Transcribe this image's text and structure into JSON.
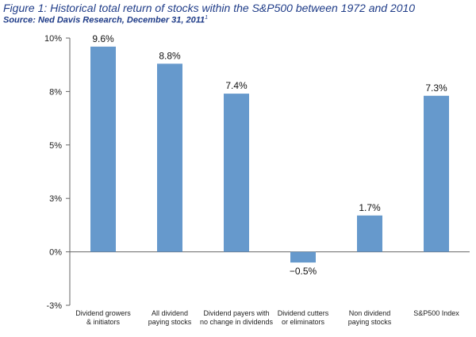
{
  "figure": {
    "title": "Figure 1: Historical total return of stocks within the S&P500 between 1972 and 2010",
    "source": "Source: Ned Davis Research, December 31, 2011",
    "source_footnote": "1"
  },
  "chart_data": {
    "type": "bar",
    "categories": [
      [
        "Dividend growers",
        "& initiators"
      ],
      [
        "All dividend",
        "paying stocks"
      ],
      [
        "Dividend payers with",
        "no change in dividends"
      ],
      [
        "Dividend cutters",
        "or eliminators"
      ],
      [
        "Non dividend",
        "paying stocks"
      ],
      [
        "S&P500 Index"
      ]
    ],
    "values": [
      9.6,
      8.8,
      7.4,
      -0.5,
      1.7,
      7.3
    ],
    "data_labels": [
      "9.6%",
      "8.8%",
      "7.4%",
      "−0.5%",
      "1.7%",
      "7.3%"
    ],
    "y_ticks": [
      {
        "value": 10,
        "label": "10%"
      },
      {
        "value": 7.5,
        "label": "8%"
      },
      {
        "value": 5,
        "label": "5%"
      },
      {
        "value": 2.5,
        "label": "3%"
      },
      {
        "value": 0,
        "label": "0%"
      },
      {
        "value": -2.5,
        "label": "-3%"
      }
    ],
    "ylim": [
      -2.5,
      10
    ],
    "grid": false,
    "bar_color": "#6699cc",
    "axis_color": "#666666"
  }
}
